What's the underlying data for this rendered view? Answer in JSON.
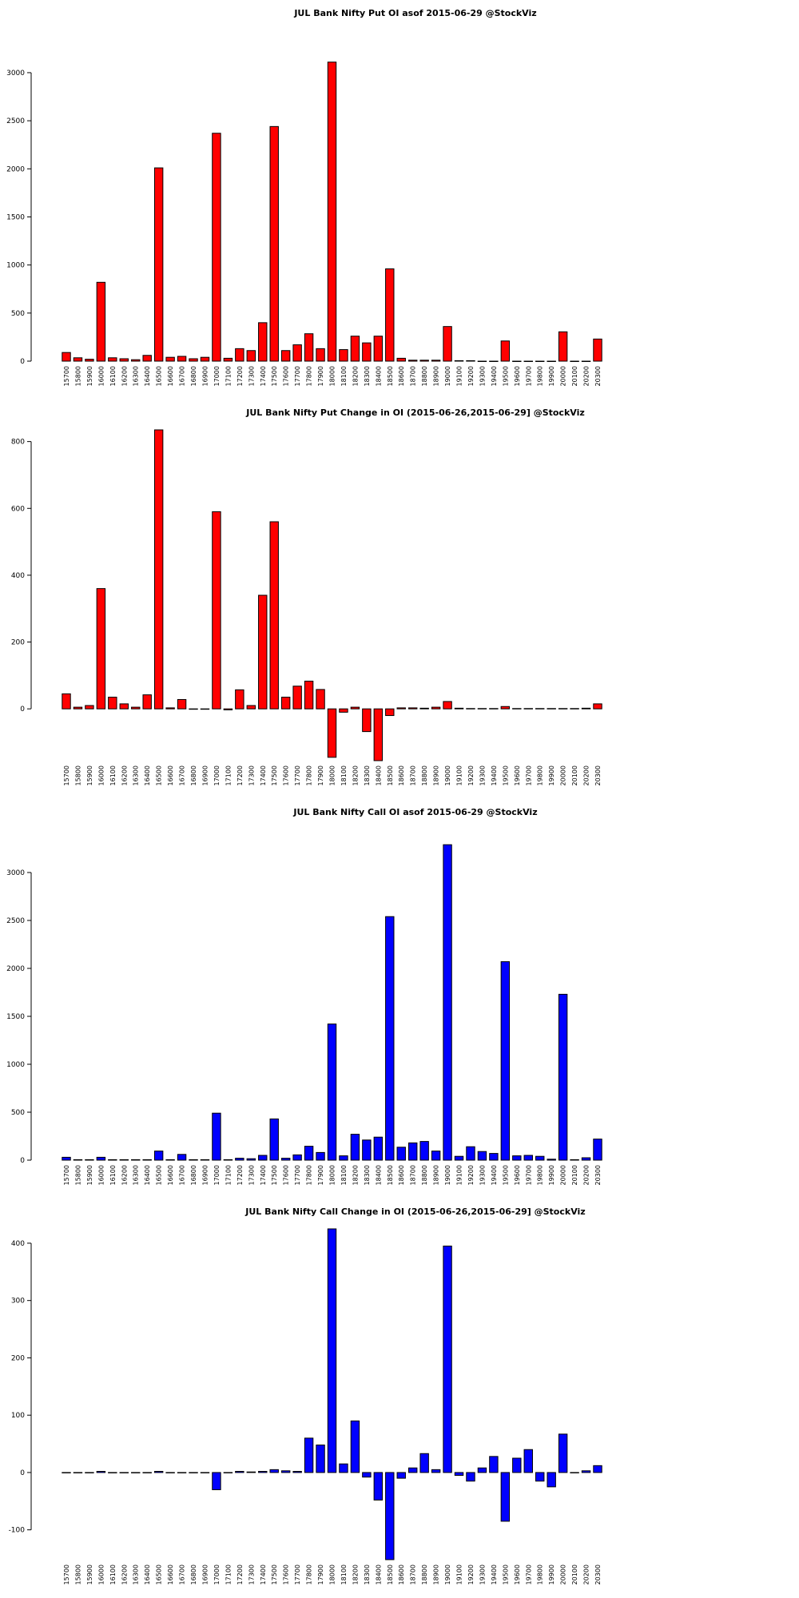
{
  "chart_data": [
    {
      "type": "bar",
      "title": "JUL Bank Nifty Put OI asof 2015-06-29 @StockViz",
      "categories": [
        "15700",
        "15800",
        "15900",
        "16000",
        "16100",
        "16200",
        "16300",
        "16400",
        "16500",
        "16600",
        "16700",
        "16800",
        "16900",
        "17000",
        "17100",
        "17200",
        "17300",
        "17400",
        "17500",
        "17600",
        "17700",
        "17800",
        "17900",
        "18000",
        "18100",
        "18200",
        "18300",
        "18400",
        "18500",
        "18600",
        "18700",
        "18800",
        "18900",
        "19000",
        "19100",
        "19200",
        "19300",
        "19400",
        "19500",
        "19600",
        "19700",
        "19800",
        "19900",
        "20000",
        "20100",
        "20200",
        "20300"
      ],
      "values": [
        90,
        35,
        20,
        820,
        35,
        25,
        15,
        60,
        2010,
        40,
        50,
        25,
        40,
        2370,
        30,
        130,
        110,
        400,
        2440,
        110,
        170,
        285,
        130,
        3110,
        120,
        260,
        190,
        260,
        960,
        30,
        10,
        10,
        10,
        360,
        5,
        5,
        0,
        0,
        210,
        0,
        0,
        0,
        0,
        305,
        0,
        0,
        230
      ],
      "color": "#ff0000",
      "ylim": [
        0,
        3440
      ],
      "yticks": [
        0,
        500,
        1000,
        1500,
        2000,
        2500,
        3000
      ]
    },
    {
      "type": "bar",
      "title": "JUL Bank Nifty Put Change in OI (2015-06-26,2015-06-29] @StockViz",
      "categories": [
        "15700",
        "15800",
        "15900",
        "16000",
        "16100",
        "16200",
        "16300",
        "16400",
        "16500",
        "16600",
        "16700",
        "16800",
        "16900",
        "17000",
        "17100",
        "17200",
        "17300",
        "17400",
        "17500",
        "17600",
        "17700",
        "17800",
        "17900",
        "18000",
        "18100",
        "18200",
        "18300",
        "18400",
        "18500",
        "18600",
        "18700",
        "18800",
        "18900",
        "19000",
        "19100",
        "19200",
        "19300",
        "19400",
        "19500",
        "19600",
        "19700",
        "19800",
        "19900",
        "20000",
        "20100",
        "20200",
        "20300"
      ],
      "values": [
        45,
        5,
        10,
        360,
        35,
        15,
        5,
        42,
        835,
        3,
        28,
        0,
        0,
        590,
        -3,
        57,
        10,
        340,
        560,
        35,
        68,
        83,
        58,
        -145,
        -10,
        5,
        -68,
        -155,
        -20,
        3,
        3,
        2,
        5,
        22,
        2,
        1,
        1,
        1,
        7,
        1,
        1,
        1,
        1,
        1,
        1,
        2,
        15
      ],
      "color": "#ff0000",
      "ylim": [
        -155,
        835
      ],
      "yticks": [
        0,
        200,
        400,
        600,
        800
      ]
    },
    {
      "type": "bar",
      "title": "JUL Bank Nifty Call OI asof 2015-06-29 @StockViz",
      "categories": [
        "15700",
        "15800",
        "15900",
        "16000",
        "16100",
        "16200",
        "16300",
        "16400",
        "16500",
        "16600",
        "16700",
        "16800",
        "16900",
        "17000",
        "17100",
        "17200",
        "17300",
        "17400",
        "17500",
        "17600",
        "17700",
        "17800",
        "17900",
        "18000",
        "18100",
        "18200",
        "18300",
        "18400",
        "18500",
        "18600",
        "18700",
        "18800",
        "18900",
        "19000",
        "19100",
        "19200",
        "19300",
        "19400",
        "19500",
        "19600",
        "19700",
        "19800",
        "19900",
        "20000",
        "20100",
        "20200",
        "20300"
      ],
      "values": [
        30,
        5,
        5,
        30,
        5,
        5,
        5,
        5,
        95,
        5,
        60,
        5,
        5,
        490,
        5,
        20,
        15,
        50,
        430,
        20,
        55,
        145,
        80,
        1420,
        45,
        270,
        210,
        240,
        2540,
        135,
        180,
        195,
        95,
        3290,
        40,
        140,
        90,
        70,
        2070,
        45,
        50,
        40,
        10,
        1730,
        5,
        25,
        220
      ],
      "color": "#0000ff",
      "ylim": [
        0,
        3450
      ],
      "yticks": [
        0,
        500,
        1000,
        1500,
        2000,
        2500,
        3000
      ]
    },
    {
      "type": "bar",
      "title": "JUL Bank Nifty Call Change in OI (2015-06-26,2015-06-29] @StockViz",
      "categories": [
        "15700",
        "15800",
        "15900",
        "16000",
        "16100",
        "16200",
        "16300",
        "16400",
        "16500",
        "16600",
        "16700",
        "16800",
        "16900",
        "17000",
        "17100",
        "17200",
        "17300",
        "17400",
        "17500",
        "17600",
        "17700",
        "17800",
        "17900",
        "18000",
        "18100",
        "18200",
        "18300",
        "18400",
        "18500",
        "18600",
        "18700",
        "18800",
        "18900",
        "19000",
        "19100",
        "19200",
        "19300",
        "19400",
        "19500",
        "19600",
        "19700",
        "19800",
        "19900",
        "20000",
        "20100",
        "20200",
        "20300"
      ],
      "values": [
        0,
        0,
        0,
        2,
        0,
        0,
        0,
        0,
        2,
        0,
        0,
        0,
        0,
        -30,
        0,
        2,
        1,
        2,
        5,
        3,
        2,
        60,
        48,
        425,
        15,
        90,
        -8,
        -48,
        -152,
        -10,
        8,
        33,
        5,
        395,
        -5,
        -15,
        8,
        28,
        -85,
        25,
        40,
        -15,
        -25,
        67,
        0,
        3,
        12
      ],
      "color": "#0000ff",
      "ylim": [
        -152,
        425
      ],
      "yticks": [
        -100,
        0,
        100,
        200,
        300,
        400
      ]
    }
  ]
}
